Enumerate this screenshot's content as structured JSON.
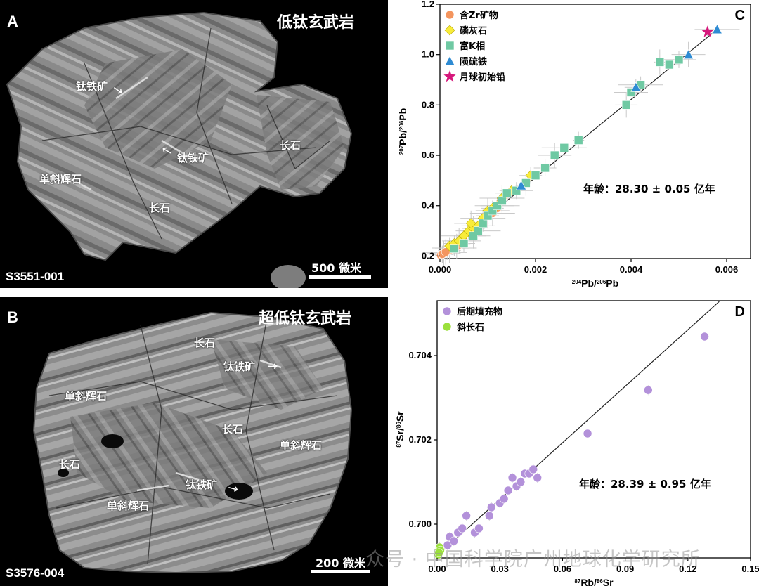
{
  "panelA": {
    "letter": "A",
    "title": "低钛玄武岩",
    "sample": "S3551-001",
    "scale_label": "500 微米",
    "labels": [
      "钛铁矿",
      "钛铁矿",
      "单斜辉石",
      "长石",
      "长石"
    ]
  },
  "panelB": {
    "letter": "B",
    "title": "超低钛玄武岩",
    "sample": "S3576-004",
    "scale_label": "200 微米",
    "labels": [
      "长石",
      "钛铁矿",
      "单斜辉石",
      "长石",
      "单斜辉石",
      "长石",
      "钛铁矿",
      "单斜辉石"
    ]
  },
  "watermark": "众号 · 中国科学院广州地球化学研究所",
  "chart_data": [
    {
      "id": "C",
      "type": "scatter",
      "xlabel": "204Pb/206Pb",
      "ylabel": "207Pb/206Pb",
      "xlim": [
        0,
        0.0065
      ],
      "ylim": [
        0.19,
        1.2
      ],
      "xticks": [
        "0.000",
        "0.002",
        "0.004",
        "0.006"
      ],
      "yticks": [
        "0.2",
        "0.4",
        "0.6",
        "0.8",
        "1.0",
        "1.2"
      ],
      "annotation": "年龄：28.30 ± 0.05 亿年",
      "legend_position": "top-left",
      "fit_line": [
        [
          0,
          0.203
        ],
        [
          0.0058,
          1.1
        ]
      ],
      "series": [
        {
          "name": "含Zr矿物",
          "marker": "circle",
          "color": "#f4955e",
          "points": [
            [
              2e-05,
              0.203
            ],
            [
              5e-05,
              0.206
            ],
            [
              8e-05,
              0.21
            ],
            [
              0.0001,
              0.214
            ],
            [
              0.00015,
              0.218
            ],
            [
              0.0002,
              0.222
            ],
            [
              0.00025,
              0.228
            ],
            [
              0.0003,
              0.232
            ],
            [
              0.00035,
              0.238
            ],
            [
              0.0004,
              0.245
            ],
            [
              0.0005,
              0.26
            ],
            [
              0.0011,
              0.37
            ],
            [
              0.0012,
              0.39
            ],
            [
              5e-05,
              0.208
            ],
            [
              0.00012,
              0.216
            ]
          ]
        },
        {
          "name": "磷灰石",
          "marker": "diamond",
          "color": "#f8ec3a",
          "points": [
            [
              0.0002,
              0.24
            ],
            [
              0.0003,
              0.25
            ],
            [
              0.0004,
              0.26
            ],
            [
              0.0005,
              0.28
            ],
            [
              0.0006,
              0.3
            ],
            [
              0.0007,
              0.31
            ],
            [
              0.0008,
              0.32
            ],
            [
              0.0009,
              0.35
            ],
            [
              0.001,
              0.38
            ],
            [
              0.0011,
              0.39
            ],
            [
              0.0012,
              0.4
            ],
            [
              0.0013,
              0.43
            ],
            [
              0.0015,
              0.46
            ],
            [
              0.0019,
              0.52
            ],
            [
              0.00065,
              0.33
            ]
          ]
        },
        {
          "name": "富K相",
          "marker": "square",
          "color": "#6fc9a3",
          "points": [
            [
              0.0003,
              0.23
            ],
            [
              0.0005,
              0.25
            ],
            [
              0.0007,
              0.28
            ],
            [
              0.0008,
              0.3
            ],
            [
              0.0009,
              0.33
            ],
            [
              0.001,
              0.36
            ],
            [
              0.0011,
              0.38
            ],
            [
              0.0012,
              0.4
            ],
            [
              0.0013,
              0.42
            ],
            [
              0.0014,
              0.45
            ],
            [
              0.0016,
              0.46
            ],
            [
              0.0018,
              0.49
            ],
            [
              0.002,
              0.52
            ],
            [
              0.0022,
              0.55
            ],
            [
              0.0024,
              0.6
            ],
            [
              0.0026,
              0.63
            ],
            [
              0.0029,
              0.66
            ],
            [
              0.0039,
              0.8
            ],
            [
              0.004,
              0.85
            ],
            [
              0.0042,
              0.88
            ],
            [
              0.0046,
              0.97
            ],
            [
              0.0048,
              0.96
            ],
            [
              0.005,
              0.98
            ]
          ]
        },
        {
          "name": "陨硫铁",
          "marker": "triangle",
          "color": "#2e8bd3",
          "points": [
            [
              0.0017,
              0.48
            ],
            [
              0.0041,
              0.87
            ],
            [
              0.0052,
              1.0
            ],
            [
              0.0058,
              1.1
            ]
          ]
        },
        {
          "name": "月球初始铅",
          "marker": "star",
          "color": "#d6177b",
          "points": [
            [
              0.0056,
              1.09
            ]
          ]
        }
      ]
    },
    {
      "id": "D",
      "type": "scatter",
      "xlabel": "87Rb/86Sr",
      "ylabel": "87Sr/86Sr",
      "xlim": [
        0,
        0.15
      ],
      "ylim": [
        0.6992,
        0.7053
      ],
      "xticks": [
        "0.00",
        "0.03",
        "0.06",
        "0.09",
        "0.12",
        "0.15"
      ],
      "yticks": [
        "0.700",
        "0.702",
        "0.704"
      ],
      "annotation": "年龄：28.39 ± 0.95 亿年",
      "legend_position": "top-left",
      "fit_line": [
        [
          0,
          0.69925
        ],
        [
          0.135,
          0.70528
        ]
      ],
      "series": [
        {
          "name": "后期填充物",
          "marker": "circle",
          "color": "#b391da",
          "points": [
            [
              0.005,
              0.6995
            ],
            [
              0.006,
              0.6997
            ],
            [
              0.008,
              0.6996
            ],
            [
              0.01,
              0.6998
            ],
            [
              0.012,
              0.6999
            ],
            [
              0.014,
              0.7002
            ],
            [
              0.018,
              0.6998
            ],
            [
              0.02,
              0.6999
            ],
            [
              0.025,
              0.7002
            ],
            [
              0.026,
              0.7004
            ],
            [
              0.03,
              0.7005
            ],
            [
              0.032,
              0.7006
            ],
            [
              0.034,
              0.7008
            ],
            [
              0.038,
              0.7009
            ],
            [
              0.04,
              0.701
            ],
            [
              0.042,
              0.7012
            ],
            [
              0.044,
              0.7012
            ],
            [
              0.046,
              0.7013
            ],
            [
              0.048,
              0.7011
            ],
            [
              0.036,
              0.7011
            ],
            [
              0.072,
              0.70215
            ],
            [
              0.101,
              0.70318
            ],
            [
              0.128,
              0.70445
            ]
          ]
        },
        {
          "name": "斜长石",
          "marker": "circle",
          "color": "#9be03c",
          "points": [
            [
              0.0005,
              0.6993
            ],
            [
              0.0008,
              0.69935
            ],
            [
              0.001,
              0.6994
            ],
            [
              0.0012,
              0.69945
            ],
            [
              0.0015,
              0.69938
            ],
            [
              0.0006,
              0.69928
            ],
            [
              0.0009,
              0.69932
            ]
          ]
        }
      ]
    }
  ]
}
